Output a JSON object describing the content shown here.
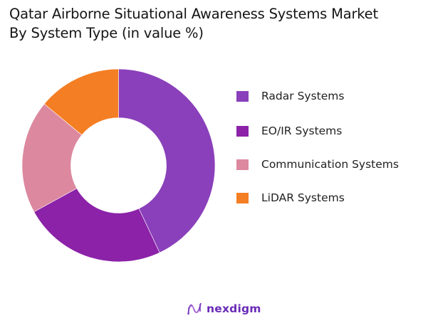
{
  "title": {
    "line1": "Qatar Airborne Situational Awareness Systems Market",
    "line2": "By System Type (in value %)"
  },
  "legend": {
    "items": [
      {
        "label": "Radar Systems",
        "color": "#8A40BA"
      },
      {
        "label": "EO/IR Systems",
        "color": "#8B22A8"
      },
      {
        "label": "Communication Systems",
        "color": "#DC889F"
      },
      {
        "label": "LiDAR Systems",
        "color": "#F47E23"
      }
    ]
  },
  "logo": {
    "text": "nexdigm",
    "icon": "nexdigm-wave-icon"
  },
  "chart_data": {
    "type": "pie",
    "subtype": "donut",
    "title": "Qatar Airborne Situational Awareness Systems Market By System Type (in value %)",
    "categories": [
      "Radar Systems",
      "EO/IR Systems",
      "Communication Systems",
      "LiDAR Systems"
    ],
    "values": [
      43,
      24,
      19,
      14
    ],
    "colors": [
      "#8A40BA",
      "#8B22A8",
      "#DC889F",
      "#F47E23"
    ],
    "unit": "%",
    "start_angle_deg": 0,
    "direction": "clockwise",
    "legend_position": "right",
    "data_labels": false
  }
}
